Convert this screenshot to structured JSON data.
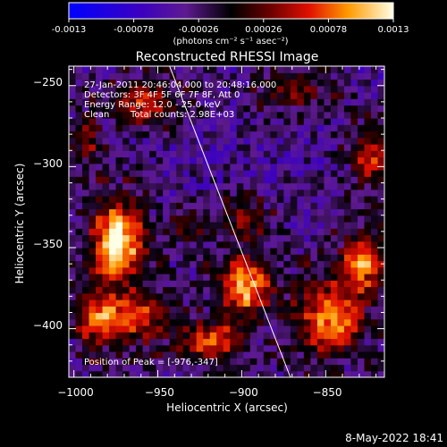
{
  "colorbar": {
    "min_label": "-0.0013",
    "ticks": [
      "-0.00078",
      "-0.00026",
      "0.00026",
      "0.00078"
    ],
    "max_label": "0.0013",
    "units_label": "(photons cm⁻² s⁻¹ asec⁻²)",
    "range": [
      -0.0013,
      0.0013
    ]
  },
  "chart_data": {
    "type": "heatmap",
    "title": "Reconstructed RHESSI Image",
    "xlabel": "Heliocentric X (arcsec)",
    "ylabel": "Heliocentric Y (arcsec)",
    "xlim": [
      -1003,
      -815
    ],
    "ylim": [
      -430,
      -238
    ],
    "x_ticks": [
      {
        "value": -1000,
        "label": "−1000"
      },
      {
        "value": -950,
        "label": "−950"
      },
      {
        "value": -900,
        "label": "−900"
      },
      {
        "value": -850,
        "label": "−850"
      }
    ],
    "y_ticks": [
      {
        "value": -250,
        "label": "−250"
      },
      {
        "value": -300,
        "label": "−300"
      },
      {
        "value": -350,
        "label": "−350"
      },
      {
        "value": -400,
        "label": "−400"
      }
    ],
    "annotations": {
      "time_range": "27-Jan-2011 20:46:04.000 to 20:48:16.000",
      "detectors": "Detectors: 3F 4F 5F 6F 7F 8F, Att 0",
      "energy_range": "Energy Range: 12.0 - 25.0 keV",
      "method": "Clean",
      "total_counts": "Total counts: 2.98E+03",
      "peak": "Position of Peak = [-976,-347]"
    },
    "peak_position": [
      -976,
      -347
    ],
    "limb_line": [
      [
        -943,
        -238
      ],
      [
        -871,
        -430
      ]
    ],
    "bright_regions": [
      {
        "x": -976,
        "y": -347,
        "intensity": 1.0,
        "sx": 12,
        "sy": 18
      },
      {
        "x": -965,
        "y": -395,
        "intensity": 0.65,
        "sx": 14,
        "sy": 12
      },
      {
        "x": -990,
        "y": -395,
        "intensity": 0.6,
        "sx": 9,
        "sy": 14
      },
      {
        "x": -900,
        "y": -375,
        "intensity": 0.85,
        "sx": 12,
        "sy": 14
      },
      {
        "x": -920,
        "y": -410,
        "intensity": 0.7,
        "sx": 14,
        "sy": 9
      },
      {
        "x": -850,
        "y": -395,
        "intensity": 0.75,
        "sx": 16,
        "sy": 18
      },
      {
        "x": -830,
        "y": -360,
        "intensity": 0.7,
        "sx": 10,
        "sy": 14
      },
      {
        "x": -825,
        "y": -295,
        "intensity": 0.6,
        "sx": 9,
        "sy": 14
      },
      {
        "x": -870,
        "y": -255,
        "intensity": 0.45,
        "sx": 14,
        "sy": 9
      },
      {
        "x": -960,
        "y": -262,
        "intensity": 0.6,
        "sx": 14,
        "sy": 10
      },
      {
        "x": -995,
        "y": -285,
        "intensity": 0.5,
        "sx": 7,
        "sy": 12
      },
      {
        "x": -900,
        "y": -335,
        "intensity": 0.45,
        "sx": 11,
        "sy": 9
      },
      {
        "x": -935,
        "y": -340,
        "intensity": 0.4,
        "sx": 10,
        "sy": 8
      }
    ]
  },
  "footer": {
    "date": "8-May-2022 18:41"
  }
}
